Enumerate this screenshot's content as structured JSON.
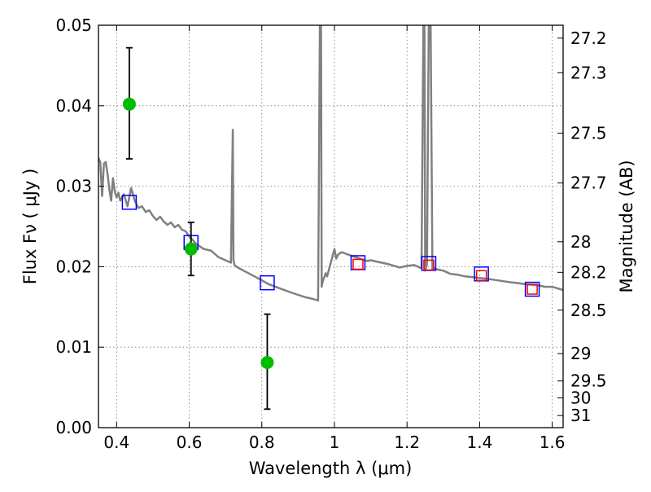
{
  "chart_data": {
    "type": "scatter",
    "xlabel": "Wavelength  λ (μm)",
    "ylabel": "Flux  Fν  ( μJy )",
    "y2label": "Magnitude (AB)",
    "xlim": [
      0.35,
      1.63
    ],
    "ylim": [
      0.0,
      0.05
    ],
    "grid": true,
    "x_ticks": [
      {
        "value": 0.4,
        "label": "0.4"
      },
      {
        "value": 0.6,
        "label": "0.6"
      },
      {
        "value": 0.8,
        "label": "0.8"
      },
      {
        "value": 1.0,
        "label": "1"
      },
      {
        "value": 1.2,
        "label": "1.2"
      },
      {
        "value": 1.4,
        "label": "1.4"
      },
      {
        "value": 1.6,
        "label": "1.6"
      }
    ],
    "y_ticks": [
      {
        "value": 0.0,
        "label": "0.00"
      },
      {
        "value": 0.01,
        "label": "0.01"
      },
      {
        "value": 0.02,
        "label": "0.02"
      },
      {
        "value": 0.03,
        "label": "0.03"
      },
      {
        "value": 0.04,
        "label": "0.04"
      },
      {
        "value": 0.05,
        "label": "0.05"
      }
    ],
    "y2_ticks": [
      {
        "flux": 0.0484,
        "label": "27.2"
      },
      {
        "flux": 0.0441,
        "label": "27.3"
      },
      {
        "flux": 0.0366,
        "label": "27.5"
      },
      {
        "flux": 0.0304,
        "label": "27.7"
      },
      {
        "flux": 0.0231,
        "label": "28"
      },
      {
        "flux": 0.0193,
        "label": "28.2"
      },
      {
        "flux": 0.0146,
        "label": "28.5"
      },
      {
        "flux": 0.0092,
        "label": "29"
      },
      {
        "flux": 0.0058,
        "label": "29.5"
      },
      {
        "flux": 0.0037,
        "label": "30"
      },
      {
        "flux": 0.0015,
        "label": "31"
      }
    ],
    "series": [
      {
        "kind": "model_spectrum",
        "color": "#808080",
        "x": [
          0.35,
          0.355,
          0.36,
          0.365,
          0.37,
          0.375,
          0.38,
          0.385,
          0.39,
          0.395,
          0.4,
          0.405,
          0.41,
          0.42,
          0.43,
          0.44,
          0.45,
          0.46,
          0.47,
          0.48,
          0.49,
          0.5,
          0.51,
          0.52,
          0.53,
          0.54,
          0.55,
          0.56,
          0.57,
          0.58,
          0.59,
          0.6,
          0.62,
          0.64,
          0.66,
          0.68,
          0.7,
          0.715,
          0.72,
          0.722,
          0.725,
          0.73,
          0.75,
          0.78,
          0.8,
          0.82,
          0.85,
          0.88,
          0.9,
          0.92,
          0.94,
          0.955,
          0.96,
          0.963,
          0.965,
          0.967,
          0.97,
          0.973,
          0.976,
          0.98,
          0.99,
          1.0,
          1.005,
          1.01,
          1.02,
          1.05,
          1.07,
          1.09,
          1.1,
          1.12,
          1.15,
          1.18,
          1.2,
          1.22,
          1.24,
          1.245,
          1.248,
          1.25,
          1.255,
          1.26,
          1.265,
          1.27,
          1.275,
          1.28,
          1.3,
          1.32,
          1.34,
          1.36,
          1.38,
          1.4,
          1.42,
          1.45,
          1.48,
          1.5,
          1.53,
          1.56,
          1.58,
          1.6,
          1.63
        ],
        "y": [
          0.0335,
          0.033,
          0.0288,
          0.0328,
          0.033,
          0.0315,
          0.0296,
          0.0282,
          0.031,
          0.0293,
          0.0286,
          0.0292,
          0.0282,
          0.029,
          0.0275,
          0.0298,
          0.0282,
          0.0273,
          0.0275,
          0.0268,
          0.027,
          0.0263,
          0.0258,
          0.0262,
          0.0256,
          0.0252,
          0.0255,
          0.0249,
          0.0252,
          0.0246,
          0.0244,
          0.0238,
          0.0228,
          0.0222,
          0.022,
          0.0212,
          0.0208,
          0.0205,
          0.037,
          0.0208,
          0.0202,
          0.02,
          0.0195,
          0.0188,
          0.0183,
          0.0178,
          0.0173,
          0.0168,
          0.0165,
          0.0162,
          0.016,
          0.0158,
          0.05,
          0.05,
          0.0175,
          0.018,
          0.0185,
          0.0188,
          0.0192,
          0.0188,
          0.0205,
          0.0222,
          0.021,
          0.0215,
          0.0218,
          0.0213,
          0.021,
          0.0207,
          0.0208,
          0.0206,
          0.0203,
          0.0199,
          0.0201,
          0.0202,
          0.0198,
          0.05,
          0.05,
          0.0195,
          0.0203,
          0.05,
          0.05,
          0.0196,
          0.0198,
          0.0197,
          0.0195,
          0.0191,
          0.019,
          0.0188,
          0.0187,
          0.0186,
          0.0185,
          0.0183,
          0.0181,
          0.018,
          0.0178,
          0.0177,
          0.0175,
          0.0175,
          0.0171
        ]
      },
      {
        "kind": "model_photometry",
        "marker": "square",
        "color": "#0000ff",
        "x": [
          0.435,
          0.605,
          0.815,
          1.065,
          1.26,
          1.405,
          1.545
        ],
        "y": [
          0.028,
          0.023,
          0.018,
          0.0205,
          0.0204,
          0.0191,
          0.0172
        ]
      },
      {
        "kind": "observed_photometry",
        "marker": "square",
        "color": "#ff0000",
        "x": [
          1.065,
          1.26,
          1.405,
          1.545
        ],
        "y": [
          0.0203,
          0.0202,
          0.0189,
          0.0172
        ]
      },
      {
        "kind": "observed_detections",
        "marker": "circle",
        "color": "#00bb00",
        "x": [
          0.435,
          0.605,
          0.815
        ],
        "y": [
          0.0402,
          0.0222,
          0.0081
        ],
        "y_err_low": [
          0.0334,
          0.0189,
          0.0023
        ],
        "y_err_high": [
          0.0472,
          0.0255,
          0.0141
        ]
      }
    ]
  }
}
